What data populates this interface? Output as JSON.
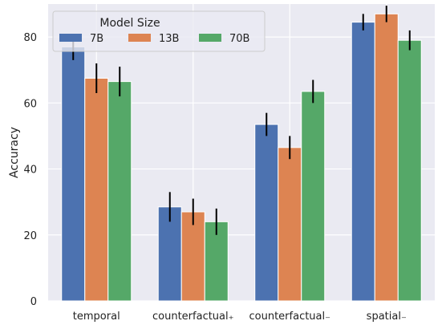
{
  "chart_data": {
    "type": "bar",
    "title": "",
    "xlabel": "",
    "ylabel": "Accuracy",
    "ylim": [
      0,
      90
    ],
    "yticks": [
      0,
      20,
      40,
      60,
      80
    ],
    "grid": true,
    "categories": [
      "temporal",
      "counterfactual₊",
      "counterfactual₋",
      "spatial₋"
    ],
    "legend": {
      "title": "Model Size",
      "placement": "top-left"
    },
    "series": [
      {
        "name": "7B",
        "color": "#4c72b0",
        "values": [
          77,
          28.5,
          53.5,
          84.5
        ],
        "errors": [
          4,
          4.5,
          3.5,
          2.5
        ]
      },
      {
        "name": "13B",
        "color": "#dd8452",
        "values": [
          67.5,
          27,
          46.5,
          87
        ],
        "errors": [
          4.5,
          4,
          3.5,
          2.5
        ]
      },
      {
        "name": "70B",
        "color": "#55a868",
        "values": [
          66.5,
          24,
          63.5,
          79
        ],
        "errors": [
          4.5,
          4,
          3.5,
          3
        ]
      }
    ]
  }
}
